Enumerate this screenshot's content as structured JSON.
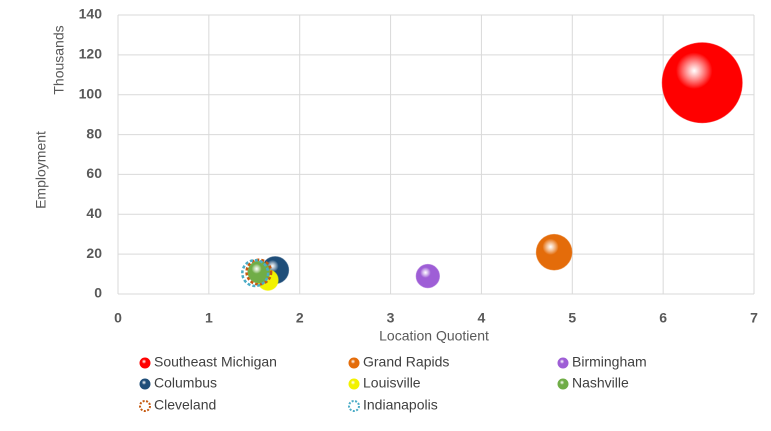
{
  "chart_data": {
    "type": "bubble",
    "x_label": "Location Quotient",
    "y_label": "Employment",
    "y_unit_label": "Thousands",
    "xlim": [
      0,
      7
    ],
    "xticks": [
      0,
      1,
      2,
      3,
      4,
      5,
      6,
      7
    ],
    "ylim": [
      0,
      140
    ],
    "yticks": [
      0,
      20,
      40,
      60,
      80,
      100,
      120,
      140
    ],
    "grid": true,
    "series": [
      {
        "name": "Southeast Michigan",
        "color": "#ff0000",
        "x": [
          6.43
        ],
        "y": [
          106
        ],
        "sizes": [
          106
        ]
      },
      {
        "name": "Grand Rapids",
        "color": "#e46c0a",
        "x": [
          4.8
        ],
        "y": [
          21
        ],
        "sizes": [
          21
        ]
      },
      {
        "name": "Birmingham",
        "color": "#9e5ed6",
        "x": [
          3.41
        ],
        "y": [
          9
        ],
        "sizes": [
          9
        ]
      },
      {
        "name": "Columbus",
        "color": "#1f4e79",
        "x": [
          1.73
        ],
        "y": [
          12
        ],
        "sizes": [
          12
        ]
      },
      {
        "name": "Louisville",
        "color": "#f2f200",
        "x": [
          1.65
        ],
        "y": [
          7
        ],
        "sizes": [
          7
        ]
      },
      {
        "name": "Nashville",
        "color": "#70ad47",
        "x": [
          1.55
        ],
        "y": [
          11
        ],
        "sizes": [
          8
        ]
      },
      {
        "name": "Cleveland",
        "color": "#c55a11",
        "style": "dashed",
        "x": [
          1.55
        ],
        "y": [
          11
        ],
        "sizes": [
          10
        ]
      },
      {
        "name": "Indianapolis",
        "color": "#4bacc6",
        "style": "dashed",
        "x": [
          1.51
        ],
        "y": [
          10.5
        ],
        "sizes": [
          11
        ]
      }
    ]
  }
}
